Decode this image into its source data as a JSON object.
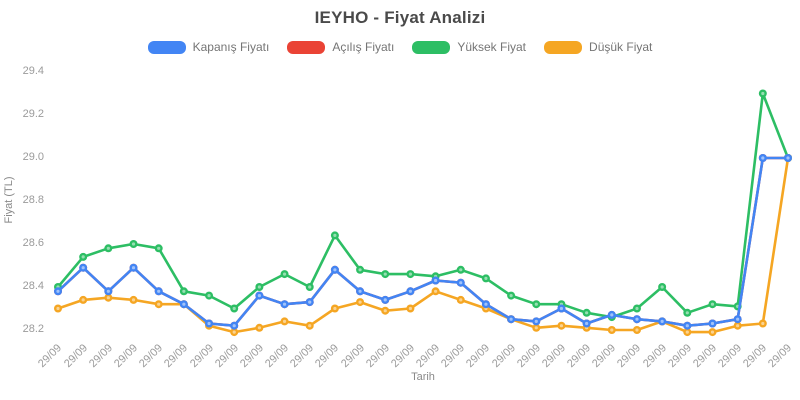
{
  "chart_data": {
    "type": "line",
    "title": "IEYHO - Fiyat Analizi",
    "xlabel": "Tarih",
    "ylabel": "Fiyat (TL)",
    "ylim": [
      28.2,
      29.4
    ],
    "yticks": [
      28.2,
      28.4,
      28.6,
      28.8,
      29.0,
      29.2,
      29.4
    ],
    "grid": false,
    "legend_position": "top",
    "categories": [
      "29/09",
      "29/09",
      "29/09",
      "29/09",
      "29/09",
      "29/09",
      "29/09",
      "29/09",
      "29/09",
      "29/09",
      "29/09",
      "29/09",
      "29/09",
      "29/09",
      "29/09",
      "29/09",
      "29/09",
      "29/09",
      "29/09",
      "29/09",
      "29/09",
      "29/09",
      "29/09",
      "29/09",
      "29/09",
      "29/09",
      "29/09",
      "29/09",
      "29/09",
      "29/09"
    ],
    "series": [
      {
        "name": "Kapanış Fiyatı",
        "color": "#4285F4",
        "values": [
          28.38,
          28.49,
          28.38,
          28.49,
          28.38,
          28.32,
          28.23,
          28.22,
          28.36,
          28.32,
          28.33,
          28.48,
          28.38,
          28.34,
          28.38,
          28.43,
          28.42,
          28.32,
          28.25,
          28.24,
          28.3,
          28.23,
          28.27,
          28.25,
          28.24,
          28.22,
          28.23,
          28.25,
          29.0,
          29.0
        ]
      },
      {
        "name": "Açılış Fiyatı",
        "color": "#EA4335",
        "values": [
          28.38,
          28.49,
          28.38,
          28.49,
          28.38,
          28.32,
          28.23,
          28.22,
          28.36,
          28.32,
          28.33,
          28.48,
          28.38,
          28.34,
          28.38,
          28.43,
          28.42,
          28.32,
          28.25,
          28.24,
          28.3,
          28.23,
          28.27,
          28.25,
          28.24,
          28.22,
          28.23,
          28.25,
          29.0,
          29.0
        ]
      },
      {
        "name": "Yüksek Fiyat",
        "color": "#2DBE64",
        "values": [
          28.4,
          28.54,
          28.58,
          28.6,
          28.58,
          28.38,
          28.36,
          28.3,
          28.4,
          28.46,
          28.4,
          28.64,
          28.48,
          28.46,
          28.46,
          28.45,
          28.48,
          28.44,
          28.36,
          28.32,
          28.32,
          28.28,
          28.26,
          28.3,
          28.4,
          28.28,
          28.32,
          28.31,
          29.3,
          29.0
        ]
      },
      {
        "name": "Düşük Fiyat",
        "color": "#F5A623",
        "values": [
          28.3,
          28.34,
          28.35,
          28.34,
          28.32,
          28.32,
          28.22,
          28.19,
          28.21,
          28.24,
          28.22,
          28.3,
          28.33,
          28.29,
          28.3,
          28.38,
          28.34,
          28.3,
          28.25,
          28.21,
          28.22,
          28.21,
          28.2,
          28.2,
          28.24,
          28.19,
          28.19,
          28.22,
          28.23,
          29.0
        ]
      }
    ]
  }
}
